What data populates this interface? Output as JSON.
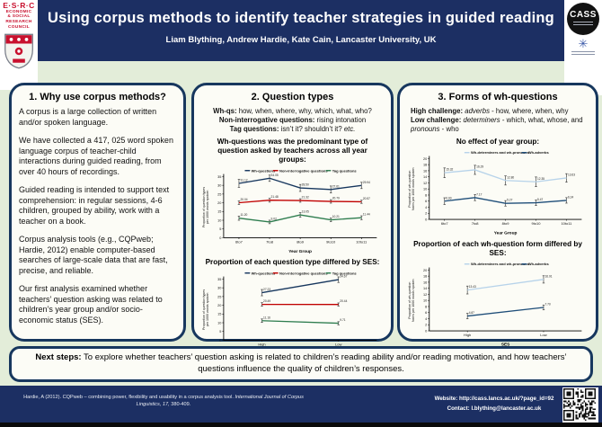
{
  "colors": {
    "navy": "#1c2f63",
    "panel_border": "#17375e",
    "bg_green": "#e3edd9",
    "esrc_red": "#c8102e",
    "line_blue": "#17375e",
    "line_red": "#c00000",
    "line_green": "#2e7d4f",
    "line_lightblue": "#b7d3ea",
    "line_steelblue": "#1f4e79"
  },
  "header": {
    "title": "Using corpus methods to identify teacher strategies in guided reading",
    "authors": "Liam Blything, Andrew Hardie, Kate Cain, Lancaster University, UK"
  },
  "logos": {
    "esrc_acronym": "E·S·R·C",
    "esrc_lines": [
      "ECONOMIC",
      "& SOCIAL",
      "RESEARCH",
      "COUNCIL"
    ],
    "cass": "CASS",
    "queens_mark": "✳"
  },
  "panel1": {
    "title": "1. Why use corpus methods?",
    "paragraphs": [
      "A corpus is a large collection of written and/or spoken language.",
      "We have collected a 417, 025 word spoken language corpus of teacher-child interactions during guided reading, from over 40 hours of recordings.",
      "Guided reading is intended to support text comprehension: in regular sessions, 4-6 children, grouped by ability, work with a teacher on a book.",
      "Corpus analysis tools (e.g., CQPweb; Hardie, 2012) enable computer-based searches of large-scale data that are fast, precise, and reliable.",
      "Our first analysis examined whether teachers’ question asking was related to children’s year group and/or socio-economic status (SES)."
    ]
  },
  "panel2": {
    "title": "2. Question types",
    "intro": [
      [
        {
          "t": "Wh-qs:",
          "b": true
        },
        {
          "t": " how, when, where, why, which, what, who?"
        }
      ],
      [
        {
          "t": "Non-interrogative questions:",
          "b": true
        },
        {
          "t": " rising intonation"
        }
      ],
      [
        {
          "t": "Tag questions:",
          "b": true
        },
        {
          "t": " isn’t it? shouldn’t it? "
        },
        {
          "t": "etc.",
          "i": true
        }
      ]
    ]
  },
  "panel3": {
    "title": "3. Forms of wh-questions",
    "intro": [
      [
        {
          "t": "High challenge:",
          "b": true
        },
        {
          "t": " "
        },
        {
          "t": "adverbs",
          "i": true
        },
        {
          "t": " - how, where, when,  why"
        }
      ],
      [
        {
          "t": "Low challenge:",
          "b": true
        },
        {
          "t": " "
        },
        {
          "t": "determiners",
          "i": true
        },
        {
          "t": " - which, what, whose, and "
        },
        {
          "t": "pronouns",
          "i": true
        },
        {
          "t": " - who"
        }
      ]
    ]
  },
  "chart_data": [
    {
      "type": "line",
      "title": "Wh-questions was the predominant type of question asked by teachers across all year groups:",
      "categories": [
        "6to7",
        "7to8",
        "8to9",
        "9to10",
        "10to11"
      ],
      "series": [
        {
          "name": "Wh-questions",
          "color": "#17375e",
          "values": [
            31.12,
            34.05,
            28.5,
            27.61,
            29.94
          ],
          "err": [
            2.3,
            1.8,
            2.0,
            2.0,
            1.8
          ]
        },
        {
          "name": "Non-interrogative questions",
          "color": "#c00000",
          "values": [
            20.04,
            21.48,
            21.32,
            20.79,
            20.57
          ],
          "err": [
            1.0,
            1.1,
            1.0,
            1.0,
            0.9
          ]
        },
        {
          "name": "Tag questions",
          "color": "#2e7d4f",
          "values": [
            11.2,
            9.02,
            13.05,
            10.21,
            11.44
          ],
          "err": [
            1.2,
            1.0,
            1.3,
            1.0,
            1.1
          ]
        }
      ],
      "xlabel": "Year Group",
      "ylabel_lines": [
        "Proportion of question types",
        "per 1000 words spoken"
      ],
      "ylim": [
        0,
        35
      ],
      "ystep": 5,
      "legend_position": "top",
      "grid": false
    },
    {
      "type": "line",
      "title": "Proportion of each question type differed by SES:",
      "categories": [
        "High",
        "Low"
      ],
      "series": [
        {
          "name": "Wh-questions",
          "color": "#17375e",
          "values": [
            27.23,
            34.67
          ],
          "err": [
            1.8,
            1.6
          ]
        },
        {
          "name": "Non-interrogative questions",
          "color": "#c00000",
          "values": [
            20.49,
            20.44
          ],
          "err": [
            1.0,
            0.9
          ]
        },
        {
          "name": "Tag questions",
          "color": "#2e7d4f",
          "values": [
            11.16,
            9.71
          ],
          "err": [
            1.0,
            0.9
          ]
        }
      ],
      "xlabel": "SES",
      "ylabel_lines": [
        "Proportion of question types",
        "per 1000 words spoken"
      ],
      "ylim": [
        0,
        35
      ],
      "ystep": 5,
      "legend_position": "top",
      "grid": false
    },
    {
      "type": "line",
      "title": "No effect of year group:",
      "categories": [
        "6to7",
        "7to8",
        "8to9",
        "9to10",
        "10to11"
      ],
      "series": [
        {
          "name": "Wh-determiners and wh-pronouns",
          "color": "#b7d3ea",
          "values": [
            15.32,
            16.29,
            12.8,
            12.35,
            13.63
          ],
          "err": [
            1.6,
            1.5,
            1.5,
            1.6,
            1.4
          ]
        },
        {
          "name": "Wh-adverbs",
          "color": "#1f4e79",
          "values": [
            6.0,
            7.17,
            5.27,
            5.47,
            6.24
          ],
          "err": [
            1.1,
            1.0,
            0.9,
            0.9,
            0.9
          ]
        }
      ],
      "xlabel": "Year Group",
      "ylabel_lines": [
        "Proportion of wh-question",
        "forms per 1000 words spoken"
      ],
      "ylim": [
        0,
        20
      ],
      "ystep": 2,
      "legend_position": "top",
      "grid": false
    },
    {
      "type": "line",
      "title": "Proportion of each wh-question form differed by SES:",
      "categories": [
        "High",
        "Low"
      ],
      "series": [
        {
          "name": "Wh-determiners and wh-pronouns",
          "color": "#b7d3ea",
          "values": [
            13.43,
            16.91
          ],
          "err": [
            1.3,
            1.2
          ]
        },
        {
          "name": "Wh-adverbs",
          "color": "#1f4e79",
          "values": [
            4.87,
            7.7
          ],
          "err": [
            0.9,
            0.8
          ]
        }
      ],
      "xlabel": "SES",
      "ylabel_lines": [
        "Proportion of wh-question",
        "forms per 1000 words spoken"
      ],
      "ylim": [
        0,
        20
      ],
      "ystep": 2,
      "legend_position": "top",
      "grid": false
    }
  ],
  "next_steps": [
    {
      "t": "Next steps:",
      "b": true
    },
    {
      "t": " To explore whether teachers’ question asking is related to children’s reading ability and/or reading motivation, and how teachers’ questions influence the quality of children’s responses."
    }
  ],
  "footer": {
    "reference": [
      {
        "t": "Hardie, A (2012). CQPweb – combining power, flexibility and usability in a corpus analysis tool. "
      },
      {
        "t": "International Journal of Corpus Linguistics, 17,",
        "i": true
      },
      {
        "t": " 380-409."
      }
    ],
    "website": "Website: http://cass.lancs.ac.uk/?page_id=92",
    "contact": "Contact: l.blything@lancaster.ac.uk"
  }
}
